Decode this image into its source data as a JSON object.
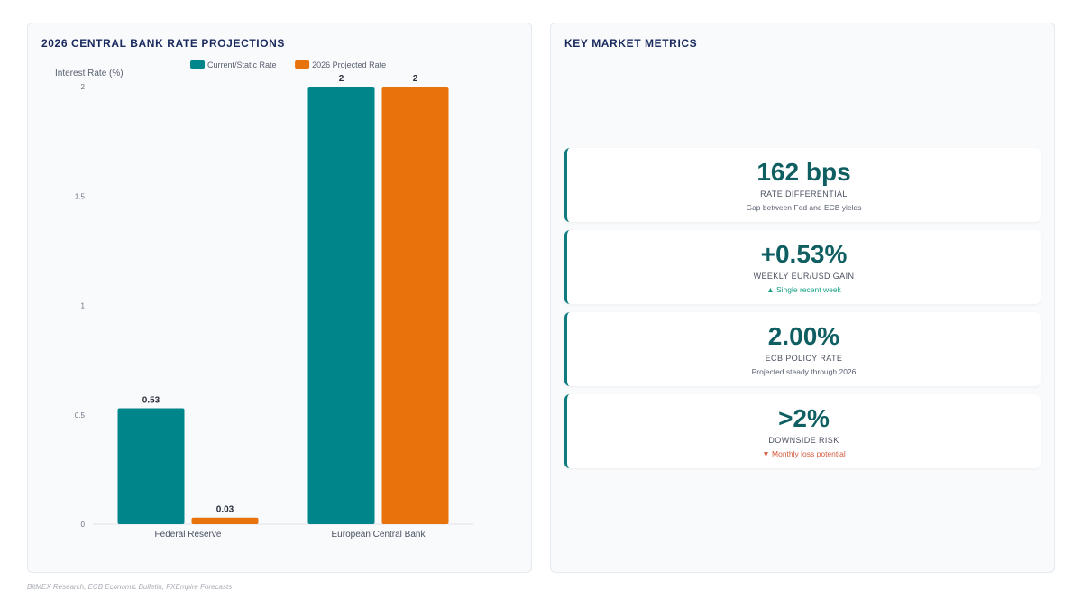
{
  "chart_panel": {
    "title": "2026 CENTRAL BANK RATE PROJECTIONS"
  },
  "chart_data": {
    "type": "bar",
    "categories": [
      "Federal Reserve",
      "European Central Bank"
    ],
    "series": [
      {
        "name": "Current/Static Rate",
        "values": [
          0.53,
          2
        ],
        "labels": [
          "0.53",
          "2"
        ],
        "color": "#00868a"
      },
      {
        "name": "2026 Projected Rate",
        "values": [
          0.03,
          2
        ],
        "labels": [
          "0.03",
          "2"
        ],
        "color": "#e8720c"
      }
    ],
    "ylabel": "Interest Rate (%)",
    "ylim": [
      0,
      2
    ],
    "yticks": [
      "0",
      "0.5",
      "1",
      "1.5",
      "2"
    ],
    "legend": "top",
    "grid": false
  },
  "metrics_panel": {
    "title": "KEY MARKET METRICS",
    "cards": [
      {
        "value": "162 bps",
        "label": "RATE DIFFERENTIAL",
        "note": "Gap between Fed and ECB yields",
        "trend": "none"
      },
      {
        "value": "+0.53%",
        "label": "WEEKLY EUR/USD GAIN",
        "note": "▲ Single recent week",
        "trend": "up"
      },
      {
        "value": "2.00%",
        "label": "ECB POLICY RATE",
        "note": "Projected steady through 2026",
        "trend": "none"
      },
      {
        "value": ">2%",
        "label": "DOWNSIDE RISK",
        "note": "▼ Monthly loss potential",
        "trend": "down"
      }
    ]
  },
  "footer": {
    "source": "BitMEX Research, ECB Economic Bulletin, FXEmpire Forecasts"
  }
}
